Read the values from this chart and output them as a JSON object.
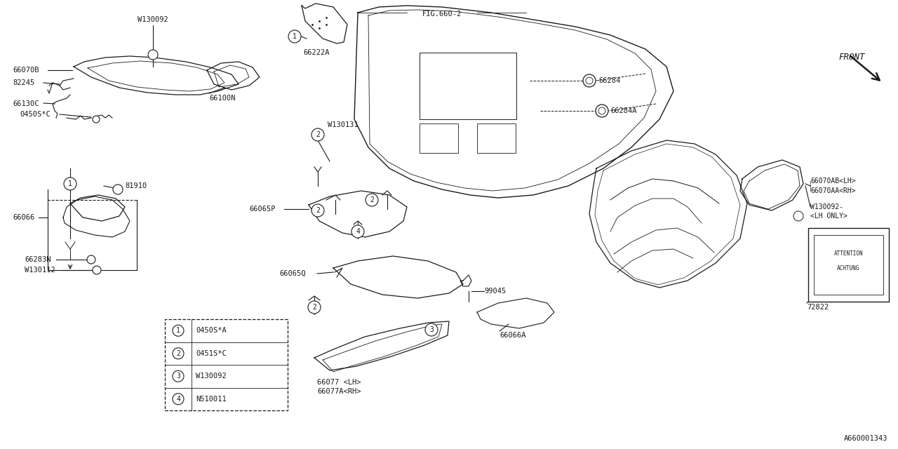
{
  "bg_color": "#ffffff",
  "line_color": "#1a1a1a",
  "text_color": "#1a1a1a",
  "part_id": "A660001343",
  "legend_items": [
    {
      "num": "1",
      "code": "0450S*A"
    },
    {
      "num": "2",
      "code": "0451S*C"
    },
    {
      "num": "3",
      "code": "W130092"
    },
    {
      "num": "4",
      "code": "N510011"
    }
  ],
  "fig_w": 12.8,
  "fig_h": 6.4,
  "xlim": [
    0,
    1280
  ],
  "ylim": [
    0,
    640
  ]
}
